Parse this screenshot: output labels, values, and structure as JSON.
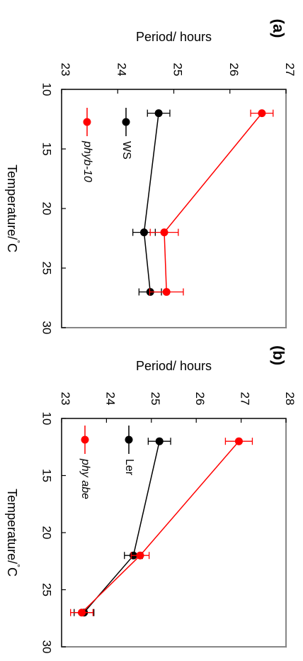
{
  "chart_data": [
    {
      "type": "line",
      "panel_label": "(a)",
      "xlabel": "Temperature/",
      "xlabel_unit": "°C",
      "ylabel": "Period/ hours",
      "xlim": [
        10,
        30
      ],
      "ylim": [
        23,
        27
      ],
      "x_ticks": [
        10,
        15,
        20,
        25,
        30
      ],
      "y_ticks": [
        23,
        24,
        25,
        26,
        27
      ],
      "x": [
        12,
        22,
        27
      ],
      "series": [
        {
          "name": "WS",
          "italic": false,
          "color": "#000000",
          "values": [
            24.73,
            24.47,
            24.58
          ],
          "errors": [
            0.2,
            0.2,
            0.2
          ]
        },
        {
          "name": "phyb-10",
          "italic": true,
          "color": "#ff0000",
          "values": [
            26.57,
            24.83,
            24.87
          ],
          "errors": [
            0.2,
            0.25,
            0.3
          ]
        }
      ]
    },
    {
      "type": "line",
      "panel_label": "(b)",
      "xlabel": "Temperature/",
      "xlabel_unit": "°C",
      "ylabel": "Period/ hours",
      "xlim": [
        10,
        30
      ],
      "ylim": [
        23,
        28
      ],
      "x_ticks": [
        10,
        15,
        20,
        25,
        30
      ],
      "y_ticks": [
        23,
        24,
        25,
        26,
        27,
        28
      ],
      "x": [
        12,
        22,
        27
      ],
      "series": [
        {
          "name": "Ler",
          "italic": false,
          "color": "#000000",
          "values": [
            25.18,
            24.6,
            23.5
          ],
          "errors": [
            0.25,
            0.2,
            0.22
          ]
        },
        {
          "name": "phy abe",
          "italic": true,
          "color": "#ff0000",
          "values": [
            26.95,
            24.75,
            23.45
          ],
          "errors": [
            0.3,
            0.2,
            0.25
          ]
        }
      ]
    }
  ]
}
